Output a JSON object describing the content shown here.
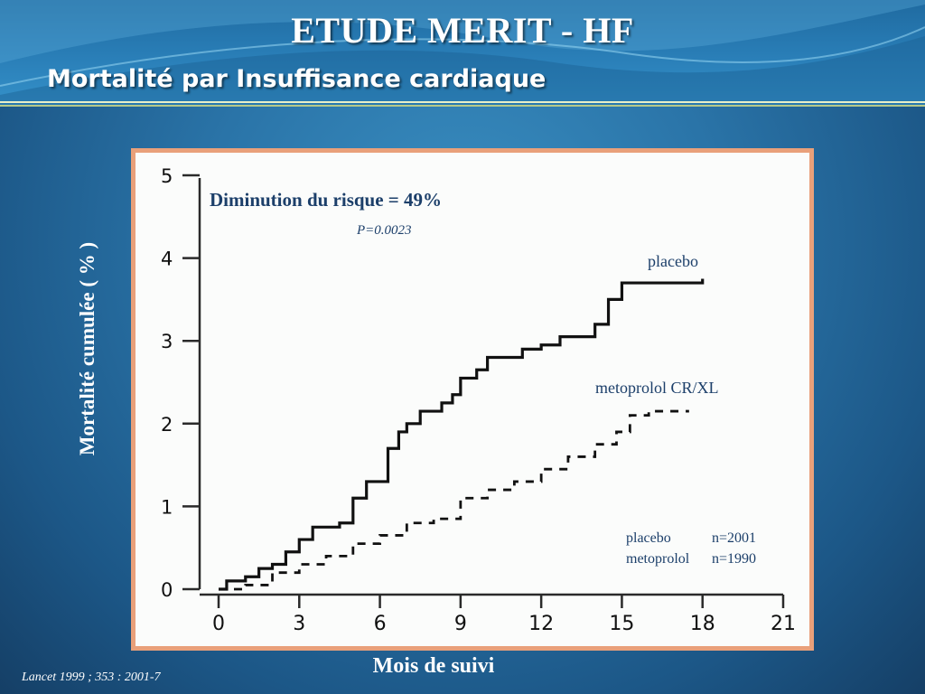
{
  "slide": {
    "title": "ETUDE MERIT - HF",
    "subtitle": "Mortalité par Insuffisance cardiaque",
    "citation": "Lancet 1999 ; 353 : 2001-7"
  },
  "colors": {
    "title_text": "#ffffff",
    "annotation_text": "#1c3f6a",
    "chart_frame": "#e9a07a",
    "curve": "#111111"
  },
  "chart_data": {
    "type": "line",
    "title": "",
    "xlabel": "Mois de suivi",
    "ylabel": "Mortalité cumulée ( % )",
    "xlim": [
      0,
      21
    ],
    "ylim": [
      0,
      5
    ],
    "x_ticks": [
      "0",
      "3",
      "6",
      "9",
      "12",
      "15",
      "18",
      "21"
    ],
    "y_ticks": [
      "0",
      "1",
      "2",
      "3",
      "4",
      "5"
    ],
    "grid": false,
    "series": [
      {
        "name": "placebo",
        "style": "solid",
        "points": [
          [
            0,
            0.0
          ],
          [
            0.3,
            0.1
          ],
          [
            1,
            0.15
          ],
          [
            1.5,
            0.25
          ],
          [
            2,
            0.3
          ],
          [
            2.5,
            0.45
          ],
          [
            3,
            0.6
          ],
          [
            3.5,
            0.75
          ],
          [
            4.5,
            0.8
          ],
          [
            5,
            1.1
          ],
          [
            5.5,
            1.3
          ],
          [
            6,
            1.3
          ],
          [
            6.3,
            1.7
          ],
          [
            6.7,
            1.9
          ],
          [
            7,
            2.0
          ],
          [
            7.5,
            2.15
          ],
          [
            8.3,
            2.25
          ],
          [
            8.7,
            2.35
          ],
          [
            9,
            2.55
          ],
          [
            9.6,
            2.65
          ],
          [
            10,
            2.8
          ],
          [
            11.3,
            2.9
          ],
          [
            12,
            2.95
          ],
          [
            12.7,
            3.05
          ],
          [
            14,
            3.2
          ],
          [
            14.5,
            3.5
          ],
          [
            15,
            3.7
          ],
          [
            17.2,
            3.7
          ],
          [
            18,
            3.75
          ]
        ]
      },
      {
        "name": "metoprolol CR/XL",
        "style": "dashed",
        "points": [
          [
            0,
            0.0
          ],
          [
            1,
            0.05
          ],
          [
            2,
            0.2
          ],
          [
            3,
            0.3
          ],
          [
            4,
            0.4
          ],
          [
            5,
            0.55
          ],
          [
            6,
            0.65
          ],
          [
            7,
            0.8
          ],
          [
            8,
            0.85
          ],
          [
            9,
            1.1
          ],
          [
            10,
            1.2
          ],
          [
            11,
            1.3
          ],
          [
            12,
            1.45
          ],
          [
            13,
            1.6
          ],
          [
            14,
            1.75
          ],
          [
            14.8,
            1.9
          ],
          [
            15.3,
            2.1
          ],
          [
            16,
            2.15
          ],
          [
            17.5,
            2.15
          ]
        ]
      }
    ],
    "annotations": {
      "risk_reduction": "Diminution du risque = 49%",
      "p_value": "P=0.0023",
      "placebo_label": "placebo",
      "metoprolol_label": "metoprolol CR/XL",
      "n_placebo_name": "placebo",
      "n_placebo_value": "n=2001",
      "n_metoprolol_name": "metoprolol",
      "n_metoprolol_value": "n=1990"
    }
  }
}
